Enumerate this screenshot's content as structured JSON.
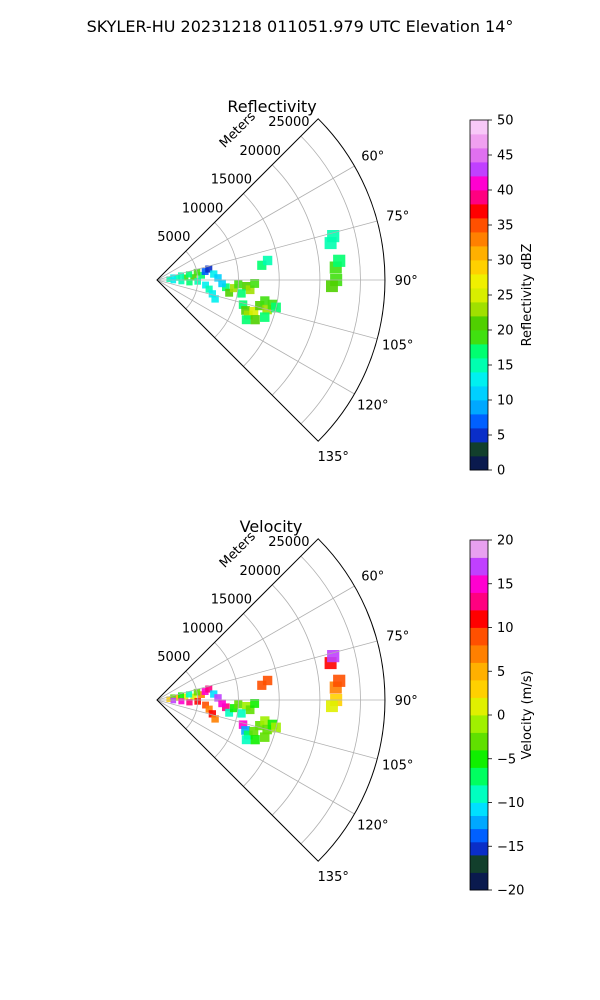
{
  "figure": {
    "suptitle": "SKYLER-HU  20231218  011051.979 UTC Elevation 14°"
  },
  "chart_data": [
    {
      "type": "heatmap",
      "projection": "polar-sector",
      "title": "Reflectivity",
      "radial_axis_label": "Meters",
      "radial_ticks": [
        5000,
        10000,
        15000,
        20000,
        25000
      ],
      "radial_tick_labels": [
        "5000",
        "10000",
        "15000",
        "20000",
        "25000"
      ],
      "rlim": [
        0,
        28000
      ],
      "azimuth_ticks_deg": [
        60,
        75,
        90,
        105,
        120,
        135
      ],
      "azimuth_tick_labels": [
        "60°",
        "75°",
        "90°",
        "105°",
        "120°",
        "135°"
      ],
      "azimuth_range_deg": [
        45,
        135
      ],
      "grid": true,
      "colorbar": {
        "label": "Reflectivity dBZ",
        "range": [
          0,
          50
        ],
        "ticks": [
          0,
          5,
          10,
          15,
          20,
          25,
          30,
          35,
          40,
          45,
          50
        ],
        "tick_labels": [
          "0",
          "5",
          "10",
          "15",
          "20",
          "25",
          "30",
          "35",
          "40",
          "45",
          "50"
        ],
        "colorscale": [
          [
            0,
            "#0a1a4e"
          ],
          [
            2,
            "#123f2c"
          ],
          [
            4,
            "#0a2ec8"
          ],
          [
            6,
            "#0060ff"
          ],
          [
            8,
            "#00a8ff"
          ],
          [
            10,
            "#00d0ff"
          ],
          [
            12,
            "#00f0f0"
          ],
          [
            14,
            "#00ffb0"
          ],
          [
            16,
            "#00ff70"
          ],
          [
            18,
            "#40e010"
          ],
          [
            20,
            "#50d000"
          ],
          [
            22,
            "#a0e000"
          ],
          [
            24,
            "#d8ee00"
          ],
          [
            26,
            "#f0f000"
          ],
          [
            28,
            "#ffd000"
          ],
          [
            30,
            "#ffb000"
          ],
          [
            32,
            "#ff8000"
          ],
          [
            34,
            "#ff5000"
          ],
          [
            36,
            "#ff0000"
          ],
          [
            38,
            "#ff0080"
          ],
          [
            40,
            "#ff00d0"
          ],
          [
            42,
            "#c040ff"
          ],
          [
            44,
            "#e070f0"
          ],
          [
            46,
            "#f0a0f0"
          ],
          [
            48,
            "#f8c8f8"
          ],
          [
            50,
            "#fff0ff"
          ]
        ]
      },
      "cells": [
        {
          "r": 1500,
          "az": 86,
          "v": 14
        },
        {
          "r": 2500,
          "az": 84,
          "v": 15
        },
        {
          "r": 3500,
          "az": 85,
          "v": 18
        },
        {
          "r": 4500,
          "az": 86,
          "v": 20
        },
        {
          "r": 5500,
          "az": 84,
          "v": 16
        },
        {
          "r": 2000,
          "az": 80,
          "v": 13
        },
        {
          "r": 3000,
          "az": 79,
          "v": 14
        },
        {
          "r": 4000,
          "az": 80,
          "v": 17
        },
        {
          "r": 5000,
          "az": 79,
          "v": 19
        },
        {
          "r": 2000,
          "az": 92,
          "v": 12
        },
        {
          "r": 3000,
          "az": 93,
          "v": 15
        },
        {
          "r": 4000,
          "az": 94,
          "v": 16
        },
        {
          "r": 5000,
          "az": 92,
          "v": 14
        },
        {
          "r": 6000,
          "az": 80,
          "v": 6
        },
        {
          "r": 6500,
          "az": 78,
          "v": 4
        },
        {
          "r": 7000,
          "az": 84,
          "v": 12
        },
        {
          "r": 7500,
          "az": 88,
          "v": 10
        },
        {
          "r": 6000,
          "az": 96,
          "v": 13
        },
        {
          "r": 6500,
          "az": 100,
          "v": 14
        },
        {
          "r": 7000,
          "az": 104,
          "v": 12
        },
        {
          "r": 7500,
          "az": 108,
          "v": 13
        },
        {
          "r": 8500,
          "az": 96,
          "v": 16
        },
        {
          "r": 9000,
          "az": 100,
          "v": 20
        },
        {
          "r": 9500,
          "az": 96,
          "v": 22
        },
        {
          "r": 10000,
          "az": 93,
          "v": 19
        },
        {
          "r": 11000,
          "az": 94,
          "v": 21
        },
        {
          "r": 11500,
          "az": 96,
          "v": 23
        },
        {
          "r": 12000,
          "az": 92,
          "v": 18
        },
        {
          "r": 10500,
          "az": 99,
          "v": 17
        },
        {
          "r": 8000,
          "az": 93,
          "v": 11
        },
        {
          "r": 11000,
          "az": 106,
          "v": 16
        },
        {
          "r": 11500,
          "az": 109,
          "v": 20
        },
        {
          "r": 12000,
          "az": 111,
          "v": 22
        },
        {
          "r": 12500,
          "az": 108,
          "v": 24
        },
        {
          "r": 13000,
          "az": 104,
          "v": 21
        },
        {
          "r": 13500,
          "az": 101,
          "v": 19
        },
        {
          "r": 14000,
          "az": 105,
          "v": 22
        },
        {
          "r": 14500,
          "az": 102,
          "v": 18
        },
        {
          "r": 12000,
          "az": 114,
          "v": 17
        },
        {
          "r": 13000,
          "az": 112,
          "v": 20
        },
        {
          "r": 14000,
          "az": 109,
          "v": 17
        },
        {
          "r": 15000,
          "az": 103,
          "v": 16
        },
        {
          "r": 13000,
          "az": 82,
          "v": 17
        },
        {
          "r": 13800,
          "az": 80,
          "v": 14
        },
        {
          "r": 22000,
          "az": 86,
          "v": 19
        },
        {
          "r": 22500,
          "az": 84,
          "v": 17
        },
        {
          "r": 22000,
          "az": 90,
          "v": 18
        },
        {
          "r": 21500,
          "az": 92,
          "v": 20
        },
        {
          "r": 21800,
          "az": 78,
          "v": 14
        },
        {
          "r": 22300,
          "az": 76,
          "v": 15
        }
      ]
    },
    {
      "type": "heatmap",
      "projection": "polar-sector",
      "title": "Velocity",
      "radial_axis_label": "Meters",
      "radial_ticks": [
        5000,
        10000,
        15000,
        20000,
        25000
      ],
      "radial_tick_labels": [
        "5000",
        "10000",
        "15000",
        "20000",
        "25000"
      ],
      "rlim": [
        0,
        28000
      ],
      "azimuth_ticks_deg": [
        60,
        75,
        90,
        105,
        120,
        135
      ],
      "azimuth_tick_labels": [
        "60°",
        "75°",
        "90°",
        "105°",
        "120°",
        "135°"
      ],
      "azimuth_range_deg": [
        45,
        135
      ],
      "grid": true,
      "colorbar": {
        "label": "Velocity (m/s)",
        "range": [
          -20,
          20
        ],
        "ticks": [
          -20,
          -15,
          -10,
          -5,
          0,
          5,
          10,
          15,
          20
        ],
        "tick_labels": [
          "−20",
          "−15",
          "−10",
          "−5",
          "0",
          "5",
          "10",
          "15",
          "20"
        ],
        "colorscale": [
          [
            -20,
            "#0a1a4e"
          ],
          [
            -18,
            "#123f2c"
          ],
          [
            -16,
            "#0a2ec8"
          ],
          [
            -14.5,
            "#0060ff"
          ],
          [
            -13,
            "#00a8ff"
          ],
          [
            -11.5,
            "#00e0ff"
          ],
          [
            -10,
            "#00ffc0"
          ],
          [
            -8,
            "#00ff60"
          ],
          [
            -6,
            "#10f000"
          ],
          [
            -4,
            "#60e000"
          ],
          [
            -2,
            "#a0f000"
          ],
          [
            0,
            "#e0f000"
          ],
          [
            2,
            "#ffd000"
          ],
          [
            4,
            "#ffb000"
          ],
          [
            6,
            "#ff8000"
          ],
          [
            8,
            "#ff5000"
          ],
          [
            10,
            "#ff0000"
          ],
          [
            12,
            "#ff0080"
          ],
          [
            14,
            "#ff00d0"
          ],
          [
            16,
            "#c040ff"
          ],
          [
            18,
            "#e8a0f0"
          ],
          [
            20,
            "#fff0ff"
          ]
        ]
      },
      "cells": [
        {
          "r": 1500,
          "az": 86,
          "v": 2
        },
        {
          "r": 2500,
          "az": 84,
          "v": 4
        },
        {
          "r": 3500,
          "az": 83,
          "v": 1
        },
        {
          "r": 4500,
          "az": 85,
          "v": 0
        },
        {
          "r": 5500,
          "az": 83,
          "v": 6
        },
        {
          "r": 2000,
          "az": 80,
          "v": -3
        },
        {
          "r": 3000,
          "az": 79,
          "v": -6
        },
        {
          "r": 4000,
          "az": 80,
          "v": -9
        },
        {
          "r": 5000,
          "az": 79,
          "v": -4
        },
        {
          "r": 2000,
          "az": 92,
          "v": 16
        },
        {
          "r": 3000,
          "az": 93,
          "v": 14
        },
        {
          "r": 4000,
          "az": 94,
          "v": 12
        },
        {
          "r": 5000,
          "az": 92,
          "v": 10
        },
        {
          "r": 6000,
          "az": 80,
          "v": 15
        },
        {
          "r": 6500,
          "az": 78,
          "v": 12
        },
        {
          "r": 7000,
          "az": 84,
          "v": -11
        },
        {
          "r": 7500,
          "az": 88,
          "v": 16
        },
        {
          "r": 6000,
          "az": 96,
          "v": 8
        },
        {
          "r": 6500,
          "az": 100,
          "v": 6
        },
        {
          "r": 7000,
          "az": 104,
          "v": 10
        },
        {
          "r": 7500,
          "az": 108,
          "v": 7
        },
        {
          "r": 8500,
          "az": 96,
          "v": 13
        },
        {
          "r": 9000,
          "az": 100,
          "v": -9
        },
        {
          "r": 9500,
          "az": 96,
          "v": -5
        },
        {
          "r": 10000,
          "az": 93,
          "v": -3
        },
        {
          "r": 11000,
          "az": 94,
          "v": -2
        },
        {
          "r": 11500,
          "az": 96,
          "v": -4
        },
        {
          "r": 12000,
          "az": 92,
          "v": -6
        },
        {
          "r": 10500,
          "az": 99,
          "v": -10
        },
        {
          "r": 8000,
          "az": 93,
          "v": 14
        },
        {
          "r": 11000,
          "az": 106,
          "v": 15
        },
        {
          "r": 11500,
          "az": 109,
          "v": -12
        },
        {
          "r": 12000,
          "az": 111,
          "v": -8
        },
        {
          "r": 12500,
          "az": 108,
          "v": -3
        },
        {
          "r": 13000,
          "az": 104,
          "v": -4
        },
        {
          "r": 13500,
          "az": 101,
          "v": -2
        },
        {
          "r": 14000,
          "az": 105,
          "v": -3
        },
        {
          "r": 14500,
          "az": 102,
          "v": -5
        },
        {
          "r": 12000,
          "az": 114,
          "v": -10
        },
        {
          "r": 13000,
          "az": 112,
          "v": -6
        },
        {
          "r": 14000,
          "az": 109,
          "v": -4
        },
        {
          "r": 15000,
          "az": 103,
          "v": -1
        },
        {
          "r": 13000,
          "az": 82,
          "v": 8
        },
        {
          "r": 13800,
          "az": 80,
          "v": 9
        },
        {
          "r": 22000,
          "az": 86,
          "v": 7
        },
        {
          "r": 22500,
          "az": 84,
          "v": 8
        },
        {
          "r": 22000,
          "az": 90,
          "v": 2
        },
        {
          "r": 21500,
          "az": 92,
          "v": 1
        },
        {
          "r": 21800,
          "az": 78,
          "v": 10
        },
        {
          "r": 22300,
          "az": 76,
          "v": 16
        }
      ]
    }
  ]
}
